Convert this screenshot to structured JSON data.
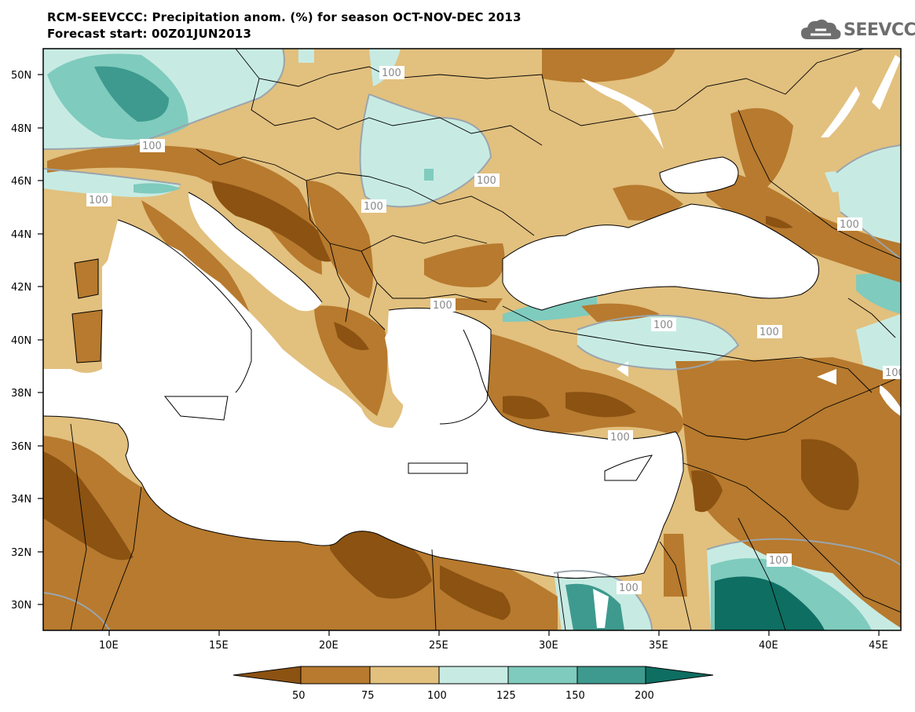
{
  "title": {
    "line1": "RCM-SEEVCCC: Precipitation anom. (%) for season OCT-NOV-DEC 2013",
    "line2": "Forecast start: 00Z01JUN2013"
  },
  "logo": {
    "text": "SEEVCCC",
    "icon": "cloud-icon"
  },
  "map": {
    "lon_ticks": [
      "10E",
      "15E",
      "20E",
      "25E",
      "30E",
      "35E",
      "40E",
      "45E"
    ],
    "lat_ticks": [
      "50N",
      "48N",
      "46N",
      "44N",
      "42N",
      "40N",
      "38N",
      "36N",
      "34N",
      "32N",
      "30N"
    ],
    "contour_label": "100"
  },
  "colorbar": {
    "ticks": [
      "50",
      "75",
      "100",
      "125",
      "150",
      "200"
    ],
    "colors": [
      "#8b5212",
      "#b77a2e",
      "#e2c07e",
      "#c7ebe3",
      "#7fcbbe",
      "#3e9a8e",
      "#0e6e62"
    ]
  },
  "colors": {
    "land": "#e2c07e",
    "sea": "#ffffff",
    "border": "#000000"
  }
}
